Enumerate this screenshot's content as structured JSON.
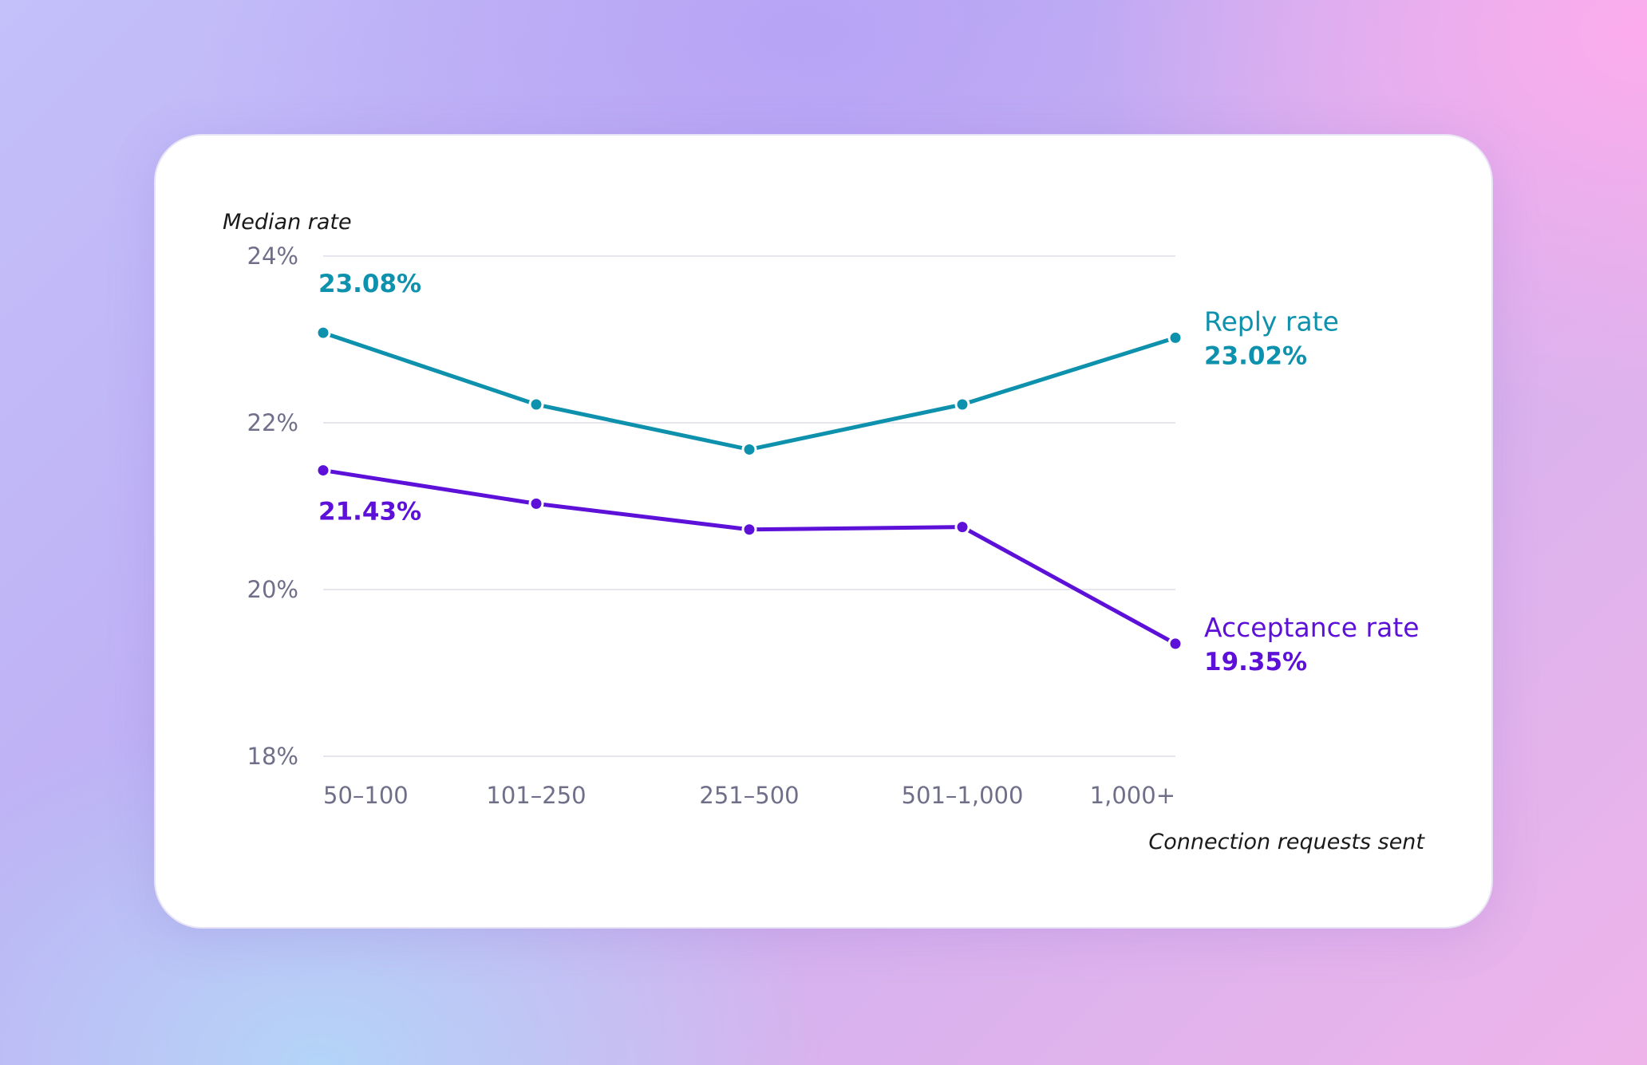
{
  "colors": {
    "reply": "#0e91ad",
    "acceptance": "#5c10d8",
    "grid": "#e6e6ee"
  },
  "chart_data": {
    "type": "line",
    "xlabel": "Connection requests sent",
    "ylabel": "Median rate",
    "categories": [
      "50–100",
      "101–250",
      "251–500",
      "501–1,000",
      "1,000+"
    ],
    "ylim": [
      18,
      24
    ],
    "yticks": [
      18,
      20,
      22,
      24
    ],
    "ytick_labels": [
      "18%",
      "20%",
      "22%",
      "24%"
    ],
    "grid": true,
    "legend": "inline labels at right end of each line",
    "series": [
      {
        "name": "Reply rate",
        "values": [
          23.08,
          22.22,
          21.68,
          22.22,
          23.02
        ],
        "start_label": "23.08%",
        "end_label": "23.02%"
      },
      {
        "name": "Acceptance rate",
        "values": [
          21.43,
          21.03,
          20.72,
          20.75,
          19.35
        ],
        "start_label": "21.43%",
        "end_label": "19.35%"
      }
    ]
  }
}
